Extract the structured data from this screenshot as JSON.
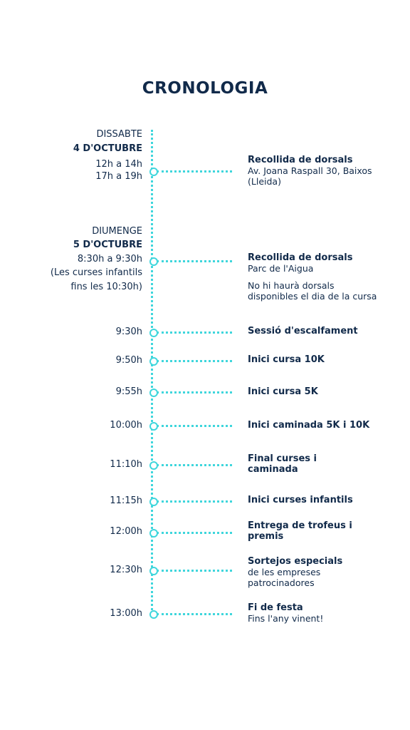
{
  "title": "CRONOLOGIA",
  "days": [
    {
      "weekday": "DISSABTE",
      "date": "4 D'OCTUBRE"
    },
    {
      "weekday": "DIUMENGE",
      "date": "5 D'OCTUBRE"
    }
  ],
  "events": [
    {
      "time": "12h a 14h",
      "time2": "17h a 19h",
      "title": "Recollida de dorsals",
      "detail": "Av. Joana Raspall 30, Baixos (Lleida)"
    },
    {
      "time": "8:30h a 9:30h",
      "time2": "(Les curses infantils",
      "time3": "fins les 10:30h)",
      "title": "Recollida de dorsals",
      "detail": "Parc de l'Aigua",
      "note": "No hi haurà dorsals disponibles el dia de la cursa"
    },
    {
      "time": "9:30h",
      "title": "Sessió d'escalfament"
    },
    {
      "time": "9:50h",
      "title": "Inici cursa 10K"
    },
    {
      "time": "9:55h",
      "title": "Inici cursa 5K"
    },
    {
      "time": "10:00h",
      "title": "Inici caminada 5K i 10K"
    },
    {
      "time": "11:10h",
      "title": "Final curses i caminada"
    },
    {
      "time": "11:15h",
      "title": "Inici curses infantils"
    },
    {
      "time": "12:00h",
      "title": "Entrega de trofeus i premis"
    },
    {
      "time": "12:30h",
      "title": "Sortejos especials",
      "detail": "de les empreses patrocinadores"
    },
    {
      "time": "13:00h",
      "title": "Fi de festa",
      "detail": "Fins l'any vinent!"
    }
  ],
  "colors": {
    "text": "#112a4a",
    "accent": "#3fd6dc"
  }
}
